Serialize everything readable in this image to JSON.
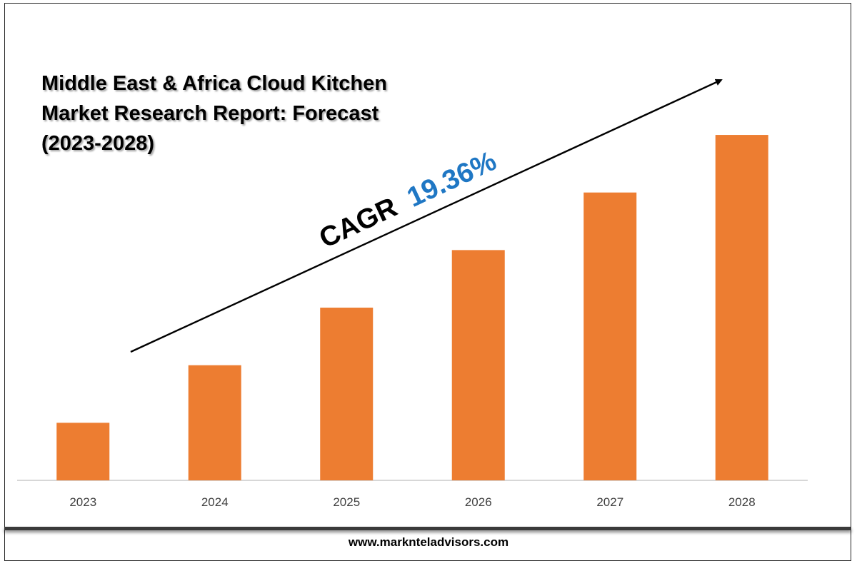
{
  "title": "Middle East & Africa Cloud Kitchen\nMarket Research Report: Forecast\n(2023-2028)",
  "cagr": {
    "label": "CAGR",
    "value": "19.36%"
  },
  "footer": {
    "url": "www.marknteladvisors.com"
  },
  "colors": {
    "bar": "#ed7d31",
    "cagr_value": "#1f77c4",
    "text": "#000000",
    "axis": "#bfbfbf",
    "tick": "#404040"
  },
  "chart_data": {
    "type": "bar",
    "title": "Middle East & Africa Cloud Kitchen Market Research Report: Forecast (2023-2028)",
    "categories": [
      "2023",
      "2024",
      "2025",
      "2026",
      "2027",
      "2028"
    ],
    "values": [
      1.0,
      2.0,
      3.0,
      4.0,
      5.0,
      6.0
    ],
    "xlabel": "",
    "ylabel": "",
    "ylim": [
      0,
      7.6
    ],
    "grid": false,
    "legend": "none",
    "annotations": [
      "CAGR 19.36%"
    ],
    "trend_arrow": true
  }
}
